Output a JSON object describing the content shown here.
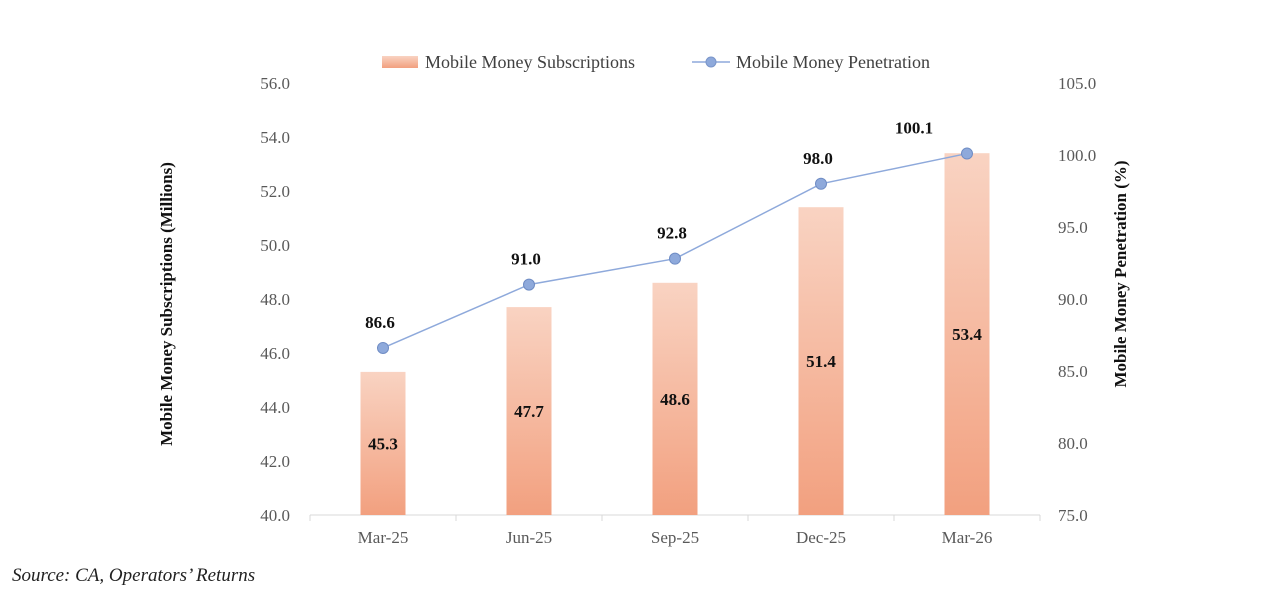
{
  "chart_data": {
    "type": "bar",
    "categories": [
      "Mar-25",
      "Jun-25",
      "Sep-25",
      "Dec-25",
      "Mar-26"
    ],
    "series": [
      {
        "name": "Mobile Money Subscriptions",
        "type": "bar",
        "axis": "left",
        "values": [
          45.3,
          47.7,
          48.6,
          51.4,
          53.4
        ]
      },
      {
        "name": "Mobile Money Penetration",
        "type": "line",
        "axis": "right",
        "values": [
          86.6,
          91.0,
          92.8,
          98.0,
          100.1
        ]
      }
    ],
    "bar_labels": [
      "45.3",
      "47.7",
      "48.6",
      "51.4",
      "53.4"
    ],
    "line_labels": [
      "86.6",
      "91.0",
      "92.8",
      "98.0",
      "100.1"
    ],
    "ylabel": "Mobile Money Subscriptions (Millions)",
    "y2label": "Mobile Money Penetration (%)",
    "ylim": [
      40,
      56
    ],
    "y2lim": [
      75,
      105
    ],
    "yticks": [
      "40.0",
      "42.0",
      "44.0",
      "46.0",
      "48.0",
      "50.0",
      "52.0",
      "54.0",
      "56.0"
    ],
    "y2ticks": [
      "75.0",
      "80.0",
      "85.0",
      "90.0",
      "95.0",
      "100.0",
      "105.0"
    ],
    "legend_position": "top",
    "grid": false,
    "colors": {
      "bar_top": "#f2a07f",
      "bar_bottom": "#f9d3c2",
      "line": "#8ea9db",
      "marker": "#8ea9db"
    }
  },
  "source": "Source: CA, Operators’ Returns"
}
